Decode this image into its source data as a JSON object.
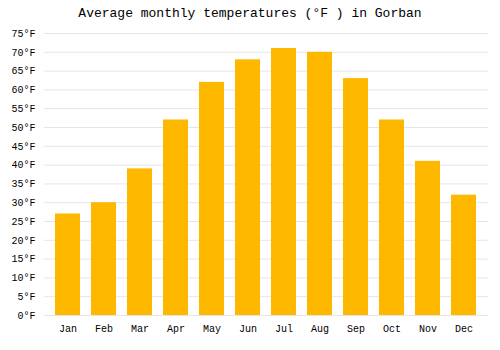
{
  "chart_data": {
    "type": "bar",
    "title": "Average monthly temperatures (°F ) in Gorban",
    "categories": [
      "Jan",
      "Feb",
      "Mar",
      "Apr",
      "May",
      "Jun",
      "Jul",
      "Aug",
      "Sep",
      "Oct",
      "Nov",
      "Dec"
    ],
    "values": [
      27,
      30,
      39,
      52,
      62,
      68,
      71,
      70,
      63,
      52,
      41,
      32
    ],
    "color": "#FFB800",
    "ylim": [
      0,
      75
    ],
    "yticks": [
      {
        "value": 0,
        "label": "0°F"
      },
      {
        "value": 5,
        "label": "5°F"
      },
      {
        "value": 10,
        "label": "10°F"
      },
      {
        "value": 15,
        "label": "15°F"
      },
      {
        "value": 20,
        "label": "20°F"
      },
      {
        "value": 25,
        "label": "25°F"
      },
      {
        "value": 30,
        "label": "30°F"
      },
      {
        "value": 35,
        "label": "35°F"
      },
      {
        "value": 40,
        "label": "40°F"
      },
      {
        "value": 45,
        "label": "45°F"
      },
      {
        "value": 50,
        "label": "50°F"
      },
      {
        "value": 55,
        "label": "55°F"
      },
      {
        "value": 60,
        "label": "60°F"
      },
      {
        "value": 65,
        "label": "65°F"
      },
      {
        "value": 70,
        "label": "70°F"
      },
      {
        "value": 75,
        "label": "75°F"
      }
    ],
    "grid": true
  }
}
